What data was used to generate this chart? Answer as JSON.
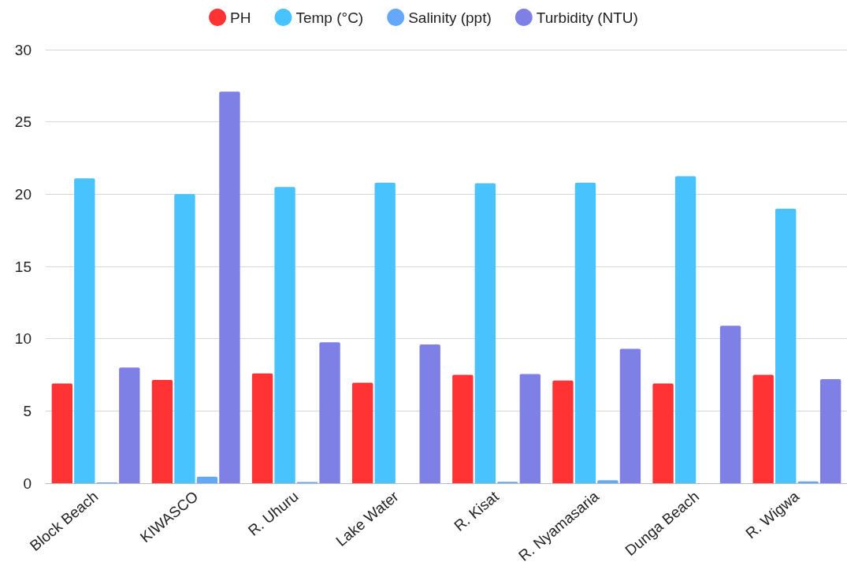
{
  "chart_data": {
    "type": "bar",
    "categories": [
      "Block Beach",
      "KIWASCO",
      "R. Uhuru",
      "Lake Water",
      "R. Kisat",
      "R. Nyamasaria",
      "Dunga Beach",
      "R. Wigwa"
    ],
    "series": [
      {
        "name": "PH",
        "color": "#ff3333",
        "values": [
          6.9,
          7.15,
          7.6,
          6.95,
          7.5,
          7.1,
          6.9,
          7.5
        ]
      },
      {
        "name": "Temp (°C)",
        "color": "#48c3fd",
        "values": [
          21.1,
          20.0,
          20.5,
          20.8,
          20.75,
          20.8,
          21.25,
          19.0
        ]
      },
      {
        "name": "Salinity (ppt)",
        "color": "#64a8fb",
        "values": [
          0.05,
          0.45,
          0.08,
          null,
          0.1,
          0.2,
          null,
          0.12
        ]
      },
      {
        "name": "Turbidity (NTU)",
        "color": "#7f80e6",
        "values": [
          8.0,
          27.1,
          9.75,
          9.6,
          7.55,
          9.3,
          10.9,
          7.2
        ]
      }
    ],
    "ylim": [
      0,
      30
    ],
    "yticks": [
      0,
      5,
      10,
      15,
      20,
      25,
      30
    ],
    "grid": "y",
    "legend": "top"
  }
}
